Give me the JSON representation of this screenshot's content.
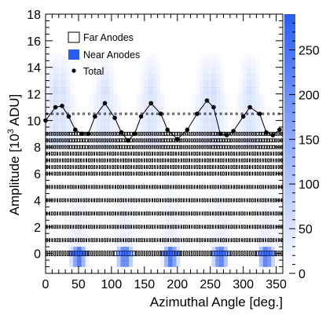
{
  "chart_data": {
    "type": "heatmap",
    "xlabel": "Azimuthal Angle [deg.]",
    "ylabel_main": "Amplitude [10",
    "ylabel_sup": "3",
    "ylabel_tail": " ADU]",
    "xlim": [
      0,
      360
    ],
    "ylim": [
      -1.5,
      18
    ],
    "x_ticks": [
      "0",
      "50",
      "100",
      "150",
      "200",
      "250",
      "300",
      "350"
    ],
    "y_ticks": [
      "0",
      "2",
      "4",
      "6",
      "8",
      "10",
      "12",
      "14",
      "16",
      "18"
    ],
    "colorbar": {
      "range": [
        0,
        290
      ],
      "ticks": [
        "0",
        "50",
        "100",
        "150",
        "200",
        "250"
      ],
      "low_color": "#ffffff",
      "high_color": "#2a5cf2"
    },
    "legend": {
      "position": "top-left",
      "entries": [
        "Far Anodes",
        "Near Anodes",
        "Total"
      ]
    },
    "near_anode_hot_angles": [
      50,
      120,
      190,
      265,
      335
    ],
    "total": {
      "name": "Total",
      "x": [
        0,
        15,
        25,
        35,
        45,
        55,
        65,
        75,
        90,
        105,
        115,
        125,
        135,
        145,
        160,
        175,
        185,
        200,
        215,
        230,
        245,
        255,
        265,
        275,
        285,
        300,
        310,
        325,
        335,
        345,
        355
      ],
      "y": [
        10.0,
        11.0,
        11.1,
        10.3,
        9.3,
        9.0,
        9.0,
        10.3,
        11.3,
        10.2,
        9.1,
        8.5,
        9.0,
        10.3,
        11.3,
        10.5,
        9.3,
        8.6,
        9.3,
        10.5,
        11.5,
        11.0,
        9.0,
        8.9,
        9.2,
        10.3,
        11.0,
        10.5,
        9.1,
        8.9,
        9.3
      ]
    }
  }
}
